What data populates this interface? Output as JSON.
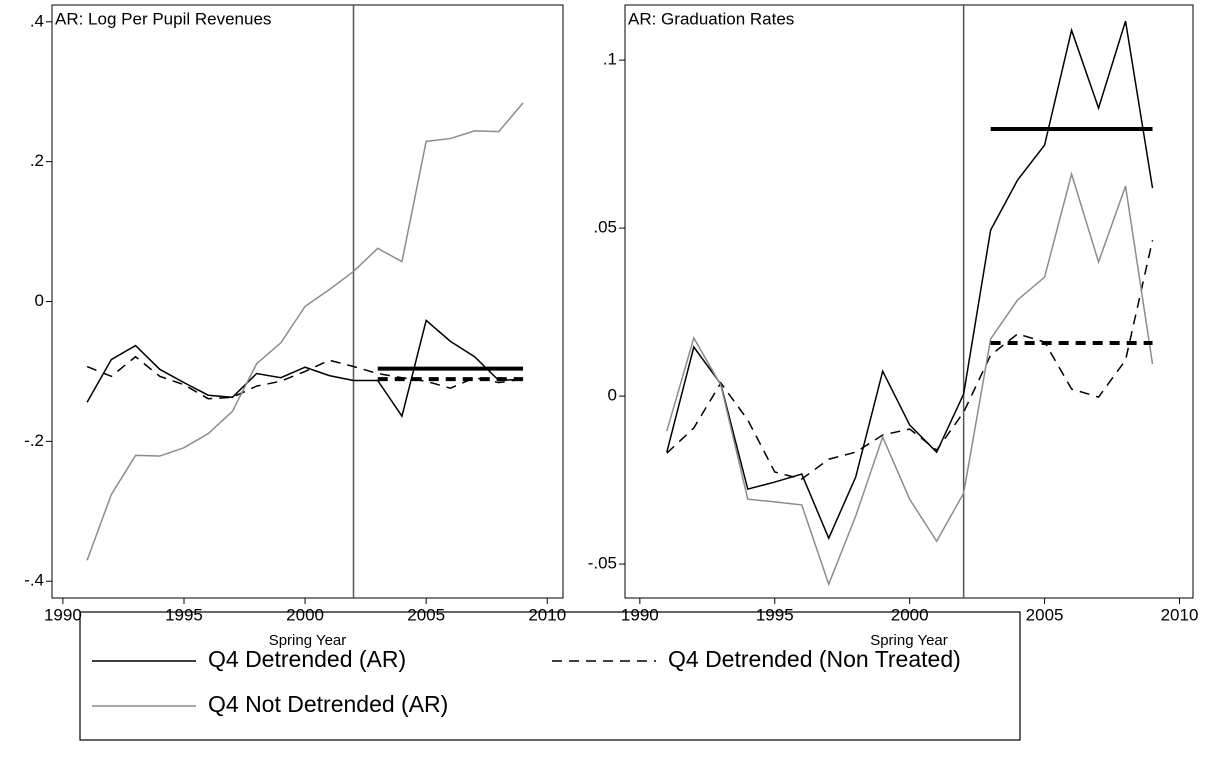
{
  "chart_data": [
    {
      "type": "line",
      "title": "AR: Log Per Pupil Revenues",
      "xlabel": "Spring Year",
      "x": [
        1991,
        1992,
        1993,
        1994,
        1995,
        1996,
        1997,
        1998,
        1999,
        2000,
        2001,
        2002,
        2003,
        2004,
        2005,
        2006,
        2007,
        2008,
        2009
      ],
      "series": [
        {
          "name": "Q4 Detrended (AR)",
          "color": "#000000",
          "dash": "solid",
          "values": [
            -0.144,
            -0.083,
            -0.063,
            -0.097,
            -0.116,
            -0.134,
            -0.137,
            -0.103,
            -0.109,
            -0.094,
            -0.106,
            -0.113,
            -0.113,
            -0.164,
            -0.027,
            -0.057,
            -0.079,
            -0.113,
            -0.111
          ]
        },
        {
          "name": "Q4 Detrended (Non Treated)",
          "color": "#000000",
          "dash": "dashed",
          "values": [
            -0.093,
            -0.107,
            -0.079,
            -0.107,
            -0.119,
            -0.139,
            -0.137,
            -0.121,
            -0.114,
            -0.1,
            -0.084,
            -0.093,
            -0.103,
            -0.109,
            -0.114,
            -0.124,
            -0.109,
            -0.116,
            -0.111
          ]
        },
        {
          "name": "Q4 Not Detrended (AR)",
          "color": "#8c8c8c",
          "dash": "solid",
          "values": [
            -0.37,
            -0.276,
            -0.22,
            -0.221,
            -0.209,
            -0.189,
            -0.157,
            -0.089,
            -0.059,
            -0.007,
            0.017,
            0.043,
            0.076,
            0.057,
            0.229,
            0.233,
            0.244,
            0.243,
            0.284
          ]
        }
      ],
      "averages": [
        {
          "x": [
            2003,
            2009
          ],
          "value": -0.096,
          "dash": "solid"
        },
        {
          "x": [
            2003,
            2009
          ],
          "value": -0.111,
          "dash": "dashed"
        }
      ],
      "vline": 2002,
      "xlim": [
        1989.55,
        2010.65
      ],
      "ylim": [
        -0.424,
        0.424
      ],
      "xticks": [
        1990,
        1995,
        2000,
        2005,
        2010
      ],
      "yticks": [
        {
          "value": 0.4,
          "label": ".4"
        },
        {
          "value": 0.2,
          "label": ".2"
        },
        0,
        {
          "value": -0.2,
          "label": "-.2"
        },
        {
          "value": -0.4,
          "label": "-.4"
        }
      ]
    },
    {
      "type": "line",
      "title": "AR: Graduation Rates",
      "xlabel": "Spring Year",
      "x": [
        1991,
        1992,
        1993,
        1994,
        1995,
        1996,
        1997,
        1998,
        1999,
        2000,
        2001,
        2002,
        2003,
        2004,
        2005,
        2006,
        2007,
        2008,
        2009
      ],
      "series": [
        {
          "name": "Q4 Detrended (AR)",
          "color": "#000000",
          "dash": "solid",
          "values": [
            -0.0167,
            0.0146,
            0.0036,
            -0.0277,
            -0.0256,
            -0.0232,
            -0.0423,
            -0.0241,
            0.0074,
            -0.0086,
            -0.0167,
            0.0006,
            0.0494,
            0.0643,
            0.0747,
            0.1089,
            0.0857,
            0.1116,
            0.0619
          ]
        },
        {
          "name": "Q4 Detrended (Non Treated)",
          "color": "#000000",
          "dash": "dashed",
          "values": [
            -0.017,
            -0.0095,
            0.0039,
            -0.0071,
            -0.0226,
            -0.0247,
            -0.0188,
            -0.0167,
            -0.0116,
            -0.0098,
            -0.0161,
            -0.0048,
            0.0122,
            0.0185,
            0.0161,
            0.0021,
            -0.0003,
            0.0107,
            0.0464
          ]
        },
        {
          "name": "Q4 Not Detrended (AR)",
          "color": "#8c8c8c",
          "dash": "solid",
          "values": [
            -0.0104,
            0.0173,
            0.0033,
            -0.0307,
            -0.0315,
            -0.0324,
            -0.056,
            -0.0357,
            -0.0122,
            -0.0307,
            -0.0432,
            -0.0289,
            0.017,
            0.0286,
            0.0354,
            0.0661,
            0.0399,
            0.0625,
            0.0095
          ]
        }
      ],
      "averages": [
        {
          "x": [
            2003,
            2009
          ],
          "value": 0.0795,
          "dash": "solid"
        },
        {
          "x": [
            2003,
            2009
          ],
          "value": 0.0158,
          "dash": "dashed"
        }
      ],
      "vline": 2002,
      "xlim": [
        1989.45,
        2010.5
      ],
      "ylim": [
        -0.0601,
        0.1164
      ],
      "xticks": [
        1990,
        1995,
        2000,
        2005,
        2010
      ],
      "yticks": [
        {
          "value": 0.1,
          "label": ".1"
        },
        {
          "value": 0.05,
          "label": ".05"
        },
        0,
        {
          "value": -0.05,
          "label": "-.05"
        }
      ]
    }
  ]
}
